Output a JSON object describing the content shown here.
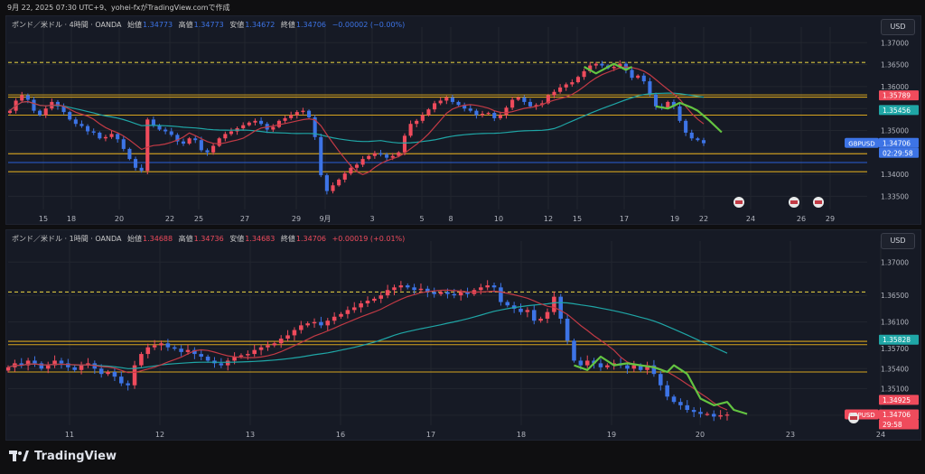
{
  "caption": "9月 22, 2025 07:30 UTC+9、yohei-fxがTradingView.comで作成",
  "brand": "TradingView",
  "colors": {
    "up": "#ef4b5c",
    "down": "#3d74e6",
    "ma_fast": "#c23a45",
    "ma_slow": "#1fa6a6",
    "level": "#d6a41f",
    "dashed": "#d6c23f",
    "grid": "#22262f",
    "wave": "#63c441"
  },
  "top": {
    "legend": {
      "title": "ポンド／米ドル · 4時間 · OANDA",
      "open_label": "始値",
      "open": "1.34773",
      "high_label": "高値",
      "high": "1.34773",
      "low_label": "安値",
      "low": "1.34672",
      "close_label": "終値",
      "close": "1.34706",
      "change": "−0.00002 (−0.00%)"
    },
    "currency": "USD",
    "price_axis": [
      "1.37000",
      "1.36500",
      "1.36000",
      "1.35500",
      "1.35000",
      "1.34500",
      "1.34000",
      "1.33500"
    ],
    "price_tags": [
      {
        "text": "1.35789",
        "color": "#ef4b5c",
        "price": 1.35789
      },
      {
        "text": "1.35456",
        "color": "#1fa6a6",
        "price": 1.35456
      },
      {
        "text": "GBPUSD",
        "color": "#3d74e6",
        "price": 1.34706,
        "side": "left"
      },
      {
        "text": "1.34706",
        "color": "#3d74e6",
        "price": 1.34706
      },
      {
        "text": "02:29:58",
        "color": "#3d74e6",
        "price": 1.34706,
        "row": 2
      }
    ],
    "time_axis": [
      "15",
      "18",
      "20",
      "22",
      "25",
      "27",
      "29",
      "9月",
      "3",
      "5",
      "8",
      "10",
      "12",
      "15",
      "17",
      "19",
      "22",
      "24",
      "26",
      "29"
    ]
  },
  "bottom": {
    "legend": {
      "title": "ポンド／米ドル · 1時間 · OANDA",
      "open_label": "始値",
      "open": "1.34688",
      "high_label": "高値",
      "high": "1.34736",
      "low_label": "安値",
      "low": "1.34683",
      "close_label": "終値",
      "close": "1.34706",
      "change": "+0.00019 (+0.01%)"
    },
    "currency": "USD",
    "price_axis": [
      "1.37000",
      "1.36500",
      "1.36100",
      "1.35700",
      "1.35400",
      "1.35100",
      "1.34700"
    ],
    "price_tags": [
      {
        "text": "1.35828",
        "color": "#1fa6a6",
        "price": 1.35828
      },
      {
        "text": "1.34925",
        "color": "#ef4b5c",
        "price": 1.34925
      },
      {
        "text": "GBPUSD",
        "color": "#ef4b5c",
        "price": 1.34706,
        "side": "left"
      },
      {
        "text": "1.34706",
        "color": "#ef4b5c",
        "price": 1.34706
      },
      {
        "text": "29:58",
        "color": "#ef4b5c",
        "price": 1.34706,
        "row": 2
      }
    ],
    "time_axis": [
      "11",
      "12",
      "13",
      "16",
      "17",
      "18",
      "19",
      "20",
      "23",
      "24"
    ]
  },
  "chart_data": [
    {
      "type": "candlestick",
      "symbol": "GBPUSD",
      "timeframe": "4H",
      "ylim": [
        1.332,
        1.3715
      ],
      "x_ticks": [
        "15",
        "18",
        "20",
        "22",
        "25",
        "27",
        "29",
        "9月",
        "3",
        "5",
        "8",
        "10",
        "12",
        "15",
        "17",
        "19",
        "22",
        "24",
        "26",
        "29"
      ],
      "horizontal_levels": [
        {
          "price": 1.3655,
          "style": "dashed"
        },
        {
          "price": 1.3581,
          "style": "solid"
        },
        {
          "price": 1.3576,
          "style": "solid"
        },
        {
          "price": 1.3535,
          "style": "solid"
        },
        {
          "price": 1.3447,
          "style": "solid"
        },
        {
          "price": 1.3406,
          "style": "solid"
        }
      ],
      "blue_line_price": 1.3427,
      "close_series": [
        1.3545,
        1.3568,
        1.358,
        1.357,
        1.3545,
        1.3535,
        1.355,
        1.3565,
        1.3555,
        1.3542,
        1.3525,
        1.3515,
        1.351,
        1.3498,
        1.3495,
        1.3482,
        1.3485,
        1.3492,
        1.348,
        1.3458,
        1.3435,
        1.3415,
        1.3408,
        1.3525,
        1.3512,
        1.3502,
        1.3498,
        1.349,
        1.3475,
        1.347,
        1.3482,
        1.3478,
        1.3455,
        1.345,
        1.3465,
        1.3482,
        1.3492,
        1.3498,
        1.3505,
        1.3512,
        1.3518,
        1.3522,
        1.3515,
        1.3502,
        1.3508,
        1.3522,
        1.3528,
        1.3535,
        1.3542,
        1.3545,
        1.353,
        1.3485,
        1.3398,
        1.3362,
        1.3375,
        1.3388,
        1.3402,
        1.3415,
        1.3422,
        1.3435,
        1.3442,
        1.3448,
        1.3445,
        1.3438,
        1.3442,
        1.345,
        1.3488,
        1.3515,
        1.3522,
        1.3535,
        1.3548,
        1.3562,
        1.3568,
        1.3575,
        1.3565,
        1.3558,
        1.355,
        1.3545,
        1.3535,
        1.3538,
        1.354,
        1.3528,
        1.3535,
        1.3552,
        1.357,
        1.3575,
        1.3565,
        1.3555,
        1.3558,
        1.3562,
        1.358,
        1.3588,
        1.3598,
        1.3605,
        1.361,
        1.3622,
        1.3635,
        1.3648,
        1.3652,
        1.3648,
        1.3642,
        1.3645,
        1.3652,
        1.3638,
        1.362,
        1.3625,
        1.3612,
        1.3582,
        1.3555,
        1.3552,
        1.3565,
        1.3555,
        1.3522,
        1.3495,
        1.3482,
        1.3478,
        1.3471
      ]
    },
    {
      "type": "candlestick",
      "symbol": "GBPUSD",
      "timeframe": "1H",
      "ylim": [
        1.3455,
        1.3718
      ],
      "x_ticks": [
        "11",
        "12",
        "13",
        "16",
        "17",
        "18",
        "19",
        "20",
        "23",
        "24"
      ],
      "horizontal_levels": [
        {
          "price": 1.3655,
          "style": "dashed"
        },
        {
          "price": 1.3581,
          "style": "solid"
        },
        {
          "price": 1.3576,
          "style": "solid"
        },
        {
          "price": 1.3535,
          "style": "solid"
        }
      ],
      "close_series": [
        1.3542,
        1.3548,
        1.3545,
        1.3552,
        1.3548,
        1.354,
        1.3545,
        1.3552,
        1.3548,
        1.3542,
        1.3538,
        1.3545,
        1.3548,
        1.354,
        1.3532,
        1.3535,
        1.3528,
        1.3518,
        1.3515,
        1.3545,
        1.3562,
        1.3572,
        1.3575,
        1.3578,
        1.3572,
        1.357,
        1.3565,
        1.3568,
        1.3562,
        1.3558,
        1.3552,
        1.3548,
        1.3545,
        1.3552,
        1.3558,
        1.356,
        1.3562,
        1.3568,
        1.3572,
        1.3575,
        1.3578,
        1.3585,
        1.359,
        1.3598,
        1.3605,
        1.3608,
        1.361,
        1.3605,
        1.3612,
        1.3618,
        1.3622,
        1.3628,
        1.3632,
        1.3638,
        1.3642,
        1.3645,
        1.365,
        1.3658,
        1.3662,
        1.3665,
        1.3662,
        1.3658,
        1.366,
        1.3655,
        1.3652,
        1.3655,
        1.3652,
        1.365,
        1.3655,
        1.3652,
        1.3658,
        1.3662,
        1.3665,
        1.3662,
        1.364,
        1.3635,
        1.363,
        1.3625,
        1.3628,
        1.3612,
        1.3615,
        1.3625,
        1.3648,
        1.3615,
        1.3582,
        1.3552,
        1.3545,
        1.3552,
        1.3548,
        1.3542,
        1.3545,
        1.3548,
        1.3545,
        1.354,
        1.3545,
        1.3538,
        1.3545,
        1.3532,
        1.3515,
        1.3498,
        1.349,
        1.3485,
        1.3478,
        1.3475,
        1.3472,
        1.3472,
        1.3468,
        1.347,
        1.3471
      ]
    }
  ]
}
